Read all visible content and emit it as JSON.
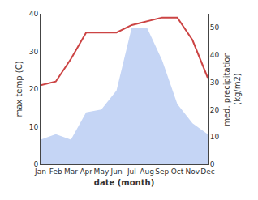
{
  "chart_data": {
    "type": "line",
    "categories": [
      "Jan",
      "Feb",
      "Mar",
      "Apr",
      "May",
      "Jun",
      "Jul",
      "Aug",
      "Sep",
      "Oct",
      "Nov",
      "Dec"
    ],
    "series": [
      {
        "type": "area",
        "color": "#c5d5f5",
        "axis": "y2",
        "values": [
          9,
          11,
          9,
          19,
          20,
          27,
          50,
          50,
          38,
          22,
          15,
          11
        ]
      },
      {
        "type": "line",
        "color": "#cc4444",
        "values": [
          21,
          22,
          28,
          35,
          35,
          35,
          37,
          38,
          39,
          39,
          33,
          23
        ]
      }
    ],
    "xlabel": "date (month)",
    "ylabel": "max temp (C)",
    "y2label": "med. precipitation\n(kg/m2)",
    "ylim": [
      0,
      40
    ],
    "yticks": [
      0,
      10,
      20,
      30,
      40
    ],
    "y2lim": [
      0,
      55
    ],
    "y2ticks": [
      0,
      10,
      20,
      30,
      40,
      50
    ],
    "grid": false
  }
}
